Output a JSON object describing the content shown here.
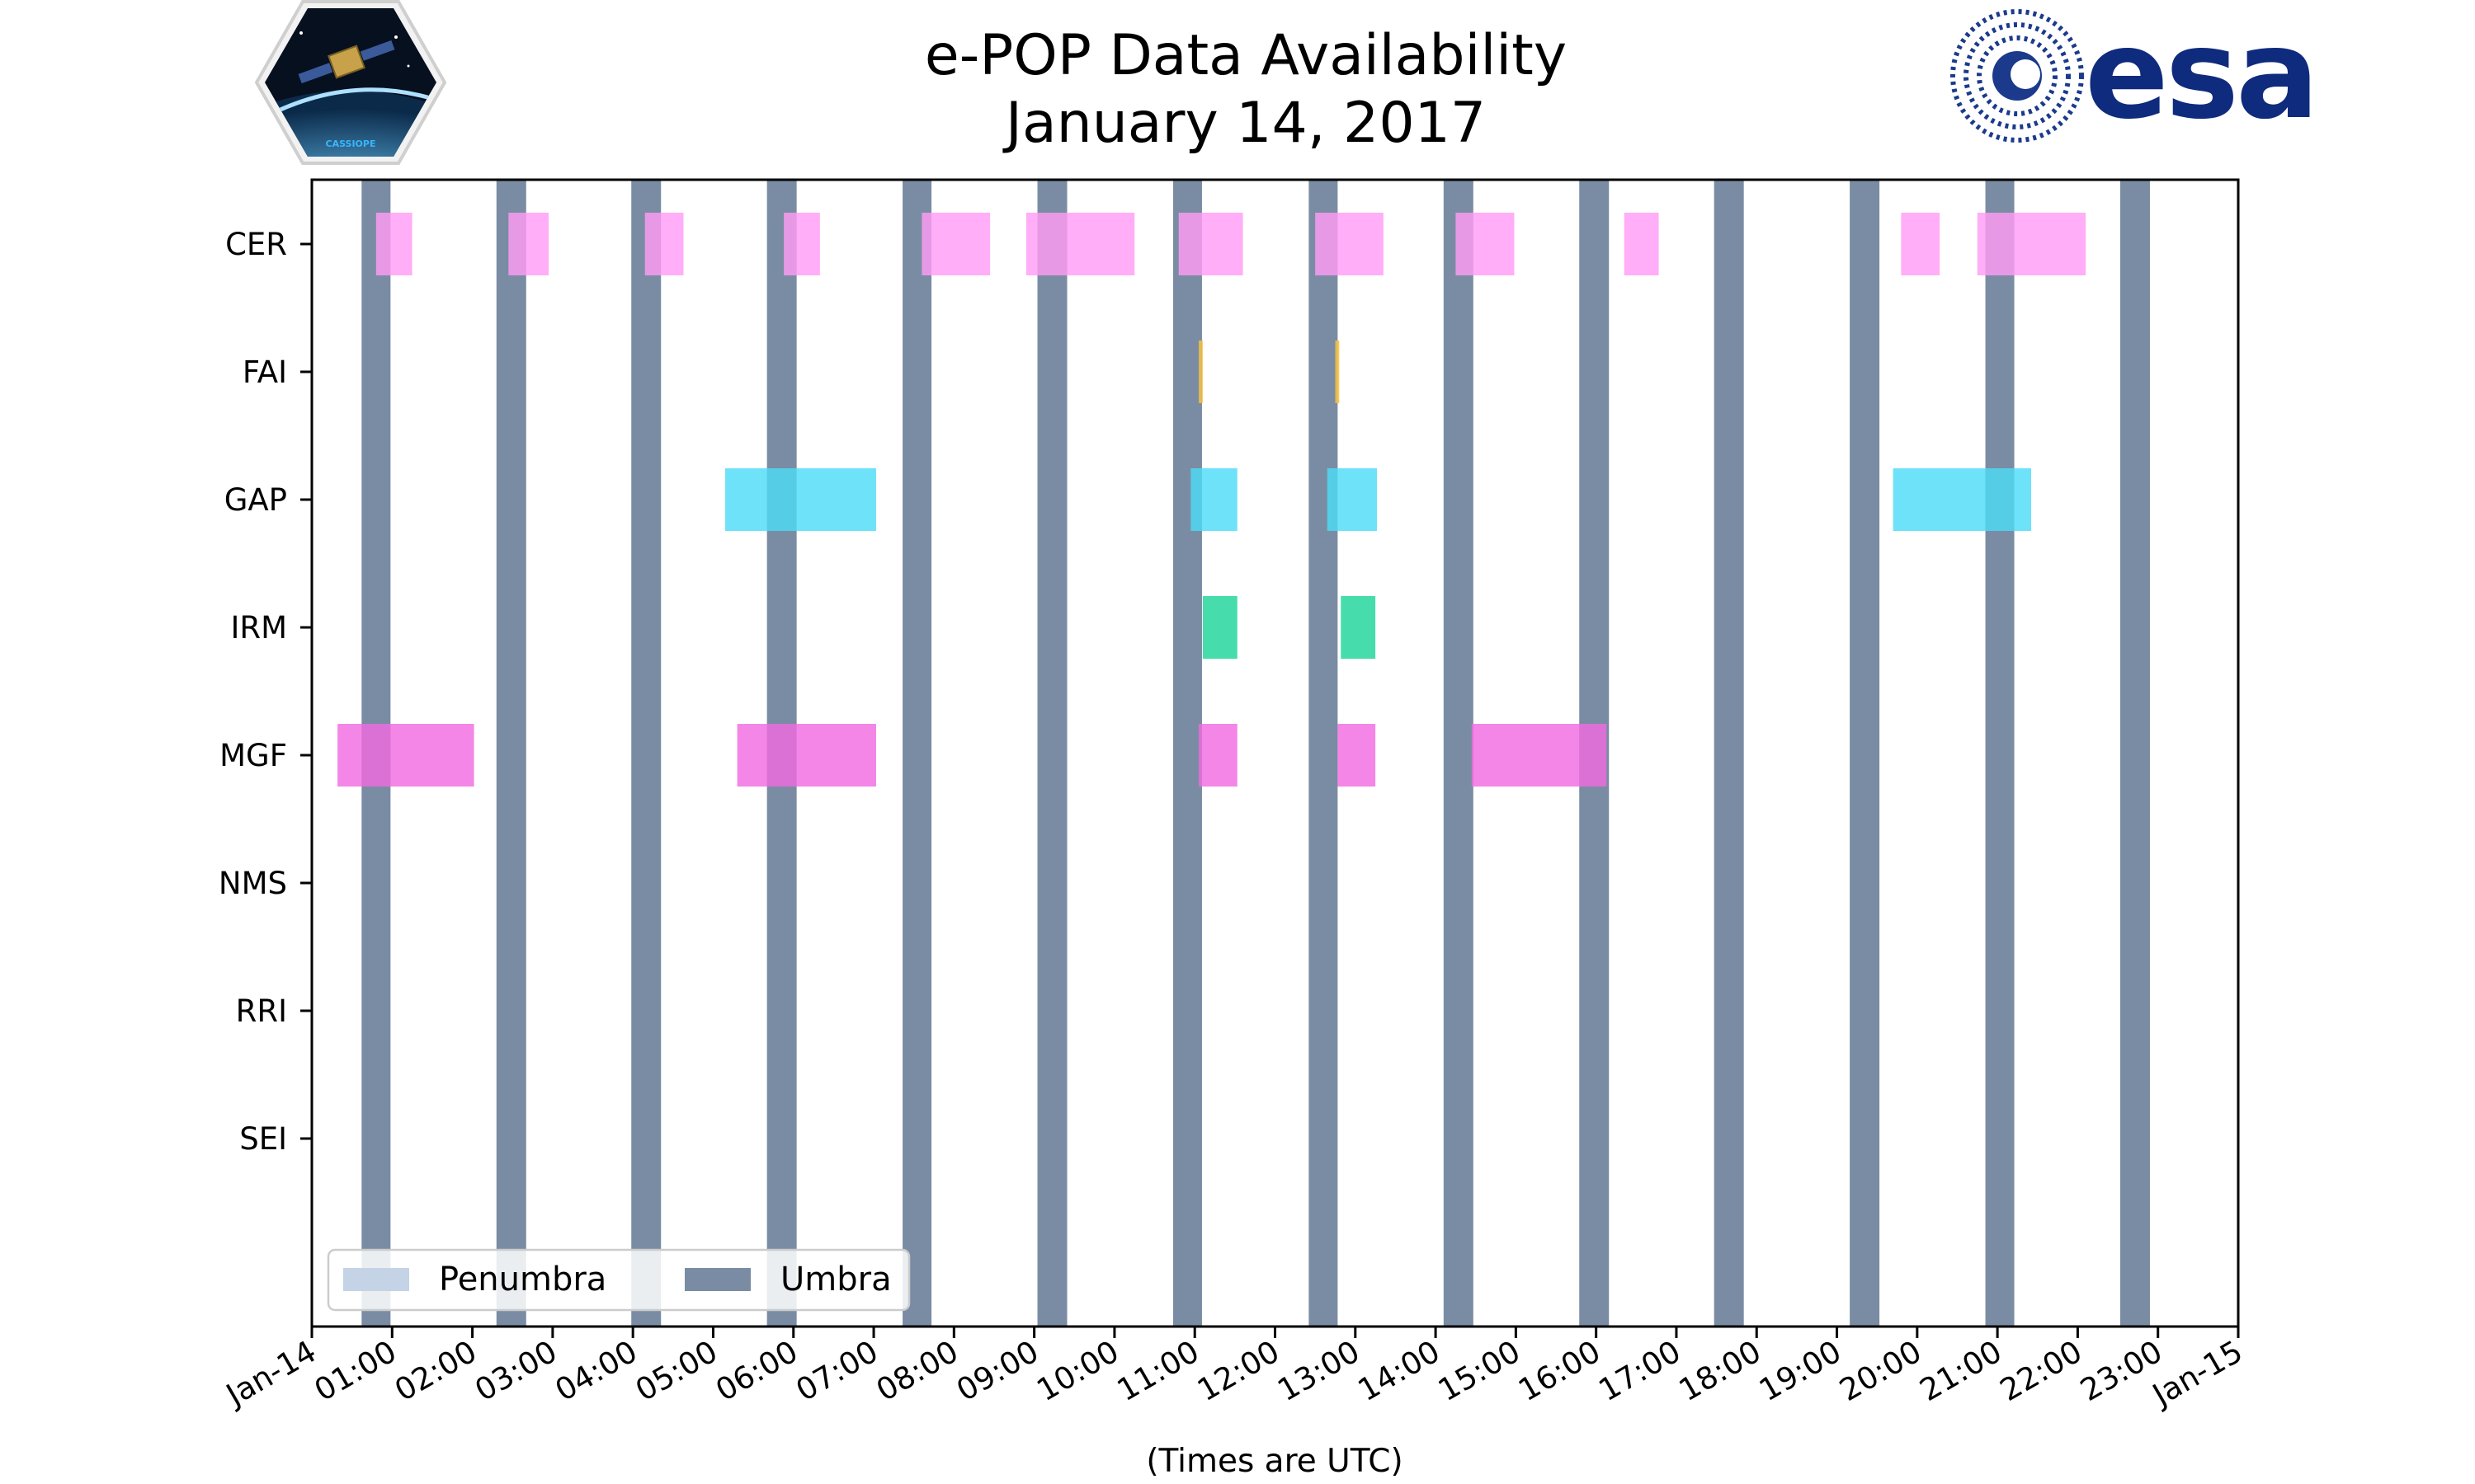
{
  "chart_data": {
    "type": "timeline",
    "title": "e-POP Data Availability",
    "subtitle": "January 14, 2017",
    "xlabel": "(Times are UTC)",
    "x_unit": "hours since Jan-14 00:00 UTC",
    "xlim": [
      0,
      24
    ],
    "x_tick_labels": [
      "Jan-14",
      "01:00",
      "02:00",
      "03:00",
      "04:00",
      "05:00",
      "06:00",
      "07:00",
      "08:00",
      "09:00",
      "10:00",
      "11:00",
      "12:00",
      "13:00",
      "14:00",
      "15:00",
      "16:00",
      "17:00",
      "18:00",
      "19:00",
      "20:00",
      "21:00",
      "22:00",
      "23:00",
      "Jan-15"
    ],
    "categories": [
      "CER",
      "FAI",
      "GAP",
      "IRM",
      "MGF",
      "NMS",
      "RRI",
      "SEI"
    ],
    "umbra": [
      [
        0.62,
        0.98
      ],
      [
        2.3,
        2.67
      ],
      [
        3.98,
        4.35
      ],
      [
        5.67,
        6.04
      ],
      [
        7.36,
        7.72
      ],
      [
        9.04,
        9.41
      ],
      [
        10.73,
        11.09
      ],
      [
        12.42,
        12.78
      ],
      [
        14.1,
        14.47
      ],
      [
        15.79,
        16.16
      ],
      [
        17.47,
        17.84
      ],
      [
        19.16,
        19.53
      ],
      [
        20.85,
        21.21
      ],
      [
        22.53,
        22.9
      ]
    ],
    "penumbra": [],
    "series": [
      {
        "name": "CER",
        "color": "#ff9cf5",
        "intervals": [
          [
            0.8,
            1.25
          ],
          [
            2.45,
            2.95
          ],
          [
            4.15,
            4.63
          ],
          [
            5.88,
            6.33
          ],
          [
            7.6,
            8.45
          ],
          [
            8.9,
            10.25
          ],
          [
            10.8,
            11.6
          ],
          [
            12.5,
            13.35
          ],
          [
            14.25,
            14.98
          ],
          [
            16.35,
            16.78
          ],
          [
            19.8,
            20.28
          ],
          [
            20.75,
            22.1
          ]
        ]
      },
      {
        "name": "FAI",
        "color": "#f5c242",
        "intervals": [
          [
            11.05,
            11.1
          ],
          [
            12.75,
            12.8
          ]
        ]
      },
      {
        "name": "GAP",
        "color": "#4ddcf7",
        "intervals": [
          [
            5.15,
            7.03
          ],
          [
            10.95,
            11.53
          ],
          [
            12.65,
            13.27
          ],
          [
            19.7,
            21.42
          ]
        ]
      },
      {
        "name": "IRM",
        "color": "#1fd49a",
        "intervals": [
          [
            11.1,
            11.53
          ],
          [
            12.82,
            13.25
          ]
        ]
      },
      {
        "name": "MGF",
        "color": "#f06be0",
        "intervals": [
          [
            0.32,
            2.02
          ],
          [
            5.3,
            7.03
          ],
          [
            11.05,
            11.53
          ],
          [
            12.78,
            13.25
          ],
          [
            14.45,
            16.13
          ]
        ]
      },
      {
        "name": "NMS",
        "color": "#999999",
        "intervals": []
      },
      {
        "name": "RRI",
        "color": "#999999",
        "intervals": []
      },
      {
        "name": "SEI",
        "color": "#999999",
        "intervals": []
      }
    ],
    "legend": {
      "location": "lower-left",
      "entries": [
        {
          "label": "Penumbra",
          "color": "#c4d3e6"
        },
        {
          "label": "Umbra",
          "color": "#7a8ca3"
        }
      ]
    },
    "colors": {
      "umbra": "#7a8ca3",
      "penumbra": "#c4d3e6"
    }
  },
  "logos": {
    "mission_badge_text": "CASSIOPE",
    "agency_wordmark": "esa"
  }
}
